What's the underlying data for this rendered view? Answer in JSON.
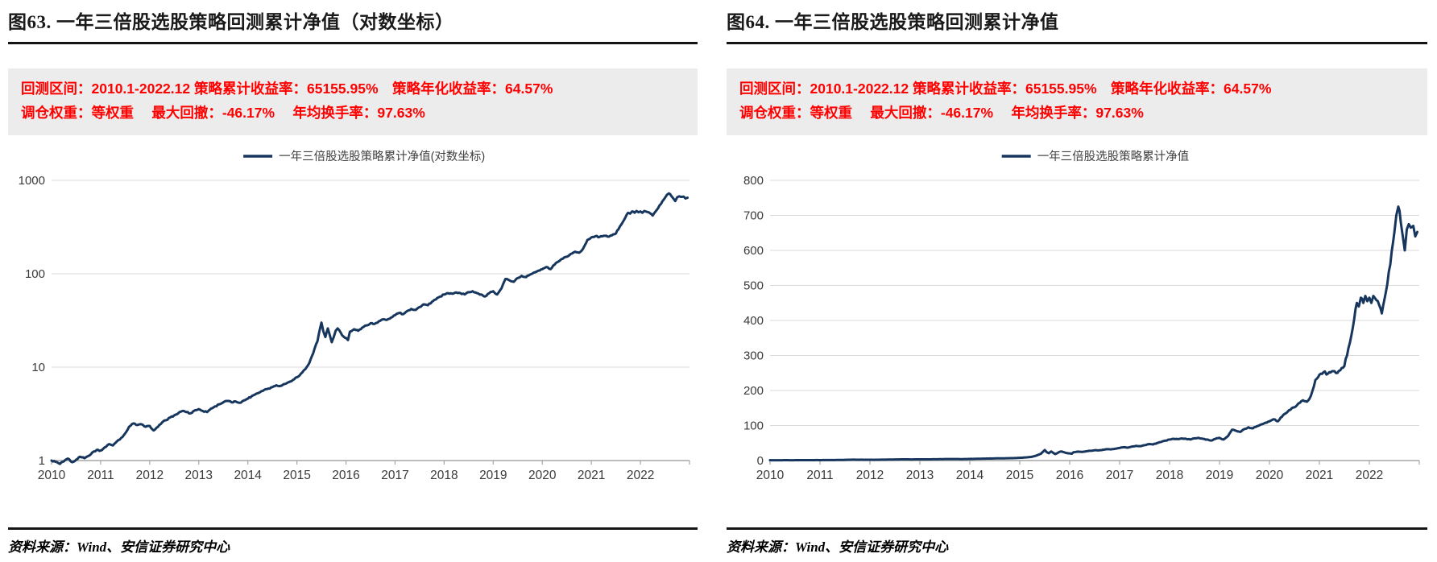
{
  "panels": [
    {
      "title": "图63. 一年三倍股选股策略回测累计净值（对数坐标）",
      "info_line1": "回测区间：2010.1-2022.12 策略累计收益率：65155.95%　策略年化收益率：64.57%",
      "info_line2": "调仓权重：等权重　 最大回撤：-46.17%　 年均换手率：97.63%",
      "legend": "一年三倍股选股策略累计净值(对数坐标)",
      "source": "资料来源：Wind、安信证券研究中心",
      "scale": "log",
      "ylim": [
        1,
        1000
      ],
      "yticks": [
        1000,
        100,
        10,
        1
      ]
    },
    {
      "title": "图64. 一年三倍股选股策略回测累计净值",
      "info_line1": "回测区间：2010.1-2022.12 策略累计收益率：65155.95%　策略年化收益率：64.57%",
      "info_line2": "调仓权重：等权重　 最大回撤：-46.17%　 年均换手率：97.63%",
      "legend": "一年三倍股选股策略累计净值",
      "source": "资料来源：Wind、安信证券研究中心",
      "scale": "linear",
      "ylim": [
        0,
        800
      ],
      "yticks": [
        800,
        700,
        600,
        500,
        400,
        300,
        200,
        100,
        0
      ]
    }
  ],
  "colors": {
    "line": "#17365D",
    "grid": "#D9D9D9",
    "axis": "#A6A6A6",
    "tick_label": "#3A3A3A",
    "legend_text": "#404040",
    "info_text": "#FF0000",
    "info_bg": "#ECECEC",
    "rule": "#141414"
  },
  "chart_data": [
    {
      "type": "line",
      "title": "图63. 一年三倍股选股策略回测累计净值（对数坐标）",
      "ylabel": "",
      "xlabel": "",
      "scale": "log",
      "ylim": [
        1,
        1000
      ],
      "yticks": [
        1,
        10,
        100,
        1000
      ],
      "xticks": [
        2010,
        2011,
        2012,
        2013,
        2014,
        2015,
        2016,
        2017,
        2018,
        2019,
        2020,
        2021,
        2022
      ],
      "legend_position": "top-center",
      "grid": true,
      "series": [
        {
          "name": "一年三倍股选股策略累计净值(对数坐标)",
          "data_ref": "strategy_nav"
        }
      ]
    },
    {
      "type": "line",
      "title": "图64. 一年三倍股选股策略回测累计净值",
      "ylabel": "",
      "xlabel": "",
      "scale": "linear",
      "ylim": [
        0,
        800
      ],
      "yticks": [
        0,
        100,
        200,
        300,
        400,
        500,
        600,
        700,
        800
      ],
      "xticks": [
        2010,
        2011,
        2012,
        2013,
        2014,
        2015,
        2016,
        2017,
        2018,
        2019,
        2020,
        2021,
        2022
      ],
      "legend_position": "top-center",
      "grid": true,
      "series": [
        {
          "name": "一年三倍股选股策略累计净值",
          "data_ref": "strategy_nav"
        }
      ]
    }
  ],
  "shared_series": {
    "strategy_nav": {
      "x_unit": "decimal_year",
      "stats": {
        "backtest_period": "2010.1-2022.12",
        "cumulative_return_pct": 65155.95,
        "annualized_return_pct": 64.57,
        "max_drawdown_pct": -46.17,
        "annual_turnover_pct": 97.63,
        "weighting": "等权重"
      },
      "points": [
        [
          2010.0,
          1.0
        ],
        [
          2010.08,
          0.97
        ],
        [
          2010.17,
          0.92
        ],
        [
          2010.25,
          0.98
        ],
        [
          2010.33,
          1.05
        ],
        [
          2010.42,
          0.96
        ],
        [
          2010.5,
          1.02
        ],
        [
          2010.58,
          1.1
        ],
        [
          2010.67,
          1.06
        ],
        [
          2010.75,
          1.12
        ],
        [
          2010.83,
          1.22
        ],
        [
          2010.92,
          1.3
        ],
        [
          2011.0,
          1.28
        ],
        [
          2011.08,
          1.38
        ],
        [
          2011.17,
          1.5
        ],
        [
          2011.25,
          1.45
        ],
        [
          2011.33,
          1.6
        ],
        [
          2011.42,
          1.75
        ],
        [
          2011.5,
          1.95
        ],
        [
          2011.58,
          2.3
        ],
        [
          2011.67,
          2.5
        ],
        [
          2011.75,
          2.4
        ],
        [
          2011.83,
          2.45
        ],
        [
          2011.92,
          2.3
        ],
        [
          2012.0,
          2.35
        ],
        [
          2012.08,
          2.1
        ],
        [
          2012.17,
          2.3
        ],
        [
          2012.25,
          2.55
        ],
        [
          2012.33,
          2.7
        ],
        [
          2012.42,
          2.9
        ],
        [
          2012.5,
          3.05
        ],
        [
          2012.58,
          3.2
        ],
        [
          2012.67,
          3.4
        ],
        [
          2012.75,
          3.3
        ],
        [
          2012.83,
          3.2
        ],
        [
          2012.92,
          3.45
        ],
        [
          2013.0,
          3.55
        ],
        [
          2013.08,
          3.4
        ],
        [
          2013.17,
          3.3
        ],
        [
          2013.25,
          3.6
        ],
        [
          2013.33,
          3.8
        ],
        [
          2013.42,
          4.0
        ],
        [
          2013.5,
          4.2
        ],
        [
          2013.58,
          4.35
        ],
        [
          2013.67,
          4.2
        ],
        [
          2013.75,
          4.3
        ],
        [
          2013.83,
          4.15
        ],
        [
          2013.92,
          4.4
        ],
        [
          2014.0,
          4.6
        ],
        [
          2014.08,
          4.9
        ],
        [
          2014.17,
          5.2
        ],
        [
          2014.25,
          5.4
        ],
        [
          2014.33,
          5.7
        ],
        [
          2014.42,
          5.9
        ],
        [
          2014.5,
          6.1
        ],
        [
          2014.58,
          6.4
        ],
        [
          2014.67,
          6.3
        ],
        [
          2014.75,
          6.6
        ],
        [
          2014.83,
          6.9
        ],
        [
          2014.92,
          7.3
        ],
        [
          2015.0,
          7.8
        ],
        [
          2015.08,
          8.5
        ],
        [
          2015.17,
          9.5
        ],
        [
          2015.25,
          11.0
        ],
        [
          2015.33,
          14.0
        ],
        [
          2015.42,
          19.0
        ],
        [
          2015.5,
          30.0
        ],
        [
          2015.54,
          24.0
        ],
        [
          2015.58,
          21.0
        ],
        [
          2015.63,
          26.0
        ],
        [
          2015.67,
          22.0
        ],
        [
          2015.71,
          18.5
        ],
        [
          2015.75,
          21.0
        ],
        [
          2015.79,
          24.5
        ],
        [
          2015.83,
          26.0
        ],
        [
          2015.92,
          22.0
        ],
        [
          2016.0,
          20.5
        ],
        [
          2016.04,
          19.5
        ],
        [
          2016.08,
          24.0
        ],
        [
          2016.17,
          25.5
        ],
        [
          2016.25,
          24.5
        ],
        [
          2016.33,
          26.5
        ],
        [
          2016.42,
          28.0
        ],
        [
          2016.5,
          29.5
        ],
        [
          2016.58,
          29.0
        ],
        [
          2016.67,
          31.0
        ],
        [
          2016.75,
          32.5
        ],
        [
          2016.83,
          32.0
        ],
        [
          2016.92,
          34.0
        ],
        [
          2017.0,
          36.0
        ],
        [
          2017.08,
          38.0
        ],
        [
          2017.17,
          37.0
        ],
        [
          2017.25,
          40.0
        ],
        [
          2017.33,
          42.0
        ],
        [
          2017.42,
          41.0
        ],
        [
          2017.5,
          44.0
        ],
        [
          2017.58,
          47.0
        ],
        [
          2017.67,
          46.0
        ],
        [
          2017.75,
          50.0
        ],
        [
          2017.83,
          53.0
        ],
        [
          2017.92,
          57.0
        ],
        [
          2018.0,
          60.0
        ],
        [
          2018.08,
          62.0
        ],
        [
          2018.17,
          61.0
        ],
        [
          2018.25,
          63.0
        ],
        [
          2018.33,
          62.0
        ],
        [
          2018.42,
          60.0
        ],
        [
          2018.5,
          63.5
        ],
        [
          2018.58,
          65.0
        ],
        [
          2018.67,
          62.0
        ],
        [
          2018.75,
          60.0
        ],
        [
          2018.83,
          57.0
        ],
        [
          2018.92,
          62.0
        ],
        [
          2019.0,
          65.0
        ],
        [
          2019.08,
          60.0
        ],
        [
          2019.17,
          70.0
        ],
        [
          2019.25,
          88.0
        ],
        [
          2019.33,
          85.0
        ],
        [
          2019.42,
          82.0
        ],
        [
          2019.5,
          90.0
        ],
        [
          2019.58,
          95.0
        ],
        [
          2019.67,
          92.0
        ],
        [
          2019.75,
          98.0
        ],
        [
          2019.83,
          103.0
        ],
        [
          2019.92,
          108.0
        ],
        [
          2020.0,
          112.0
        ],
        [
          2020.08,
          118.0
        ],
        [
          2020.17,
          112.0
        ],
        [
          2020.25,
          125.0
        ],
        [
          2020.33,
          135.0
        ],
        [
          2020.42,
          145.0
        ],
        [
          2020.5,
          152.0
        ],
        [
          2020.58,
          163.0
        ],
        [
          2020.67,
          172.0
        ],
        [
          2020.75,
          168.0
        ],
        [
          2020.83,
          185.0
        ],
        [
          2020.92,
          230.0
        ],
        [
          2021.0,
          245.0
        ],
        [
          2021.08,
          252.0
        ],
        [
          2021.17,
          248.0
        ],
        [
          2021.25,
          255.0
        ],
        [
          2021.33,
          250.0
        ],
        [
          2021.42,
          258.0
        ],
        [
          2021.5,
          270.0
        ],
        [
          2021.58,
          320.0
        ],
        [
          2021.67,
          380.0
        ],
        [
          2021.75,
          450.0
        ],
        [
          2021.79,
          440.0
        ],
        [
          2021.83,
          465.0
        ],
        [
          2021.88,
          450.0
        ],
        [
          2021.92,
          470.0
        ],
        [
          2021.96,
          455.0
        ],
        [
          2022.0,
          465.0
        ],
        [
          2022.04,
          450.0
        ],
        [
          2022.08,
          470.0
        ],
        [
          2022.17,
          455.0
        ],
        [
          2022.25,
          420.0
        ],
        [
          2022.33,
          480.0
        ],
        [
          2022.42,
          560.0
        ],
        [
          2022.5,
          650.0
        ],
        [
          2022.54,
          700.0
        ],
        [
          2022.58,
          725.0
        ],
        [
          2022.63,
          680.0
        ],
        [
          2022.67,
          640.0
        ],
        [
          2022.71,
          600.0
        ],
        [
          2022.75,
          660.0
        ],
        [
          2022.79,
          675.0
        ],
        [
          2022.83,
          665.0
        ],
        [
          2022.88,
          670.0
        ],
        [
          2022.92,
          640.0
        ],
        [
          2022.96,
          652.6
        ]
      ]
    }
  }
}
